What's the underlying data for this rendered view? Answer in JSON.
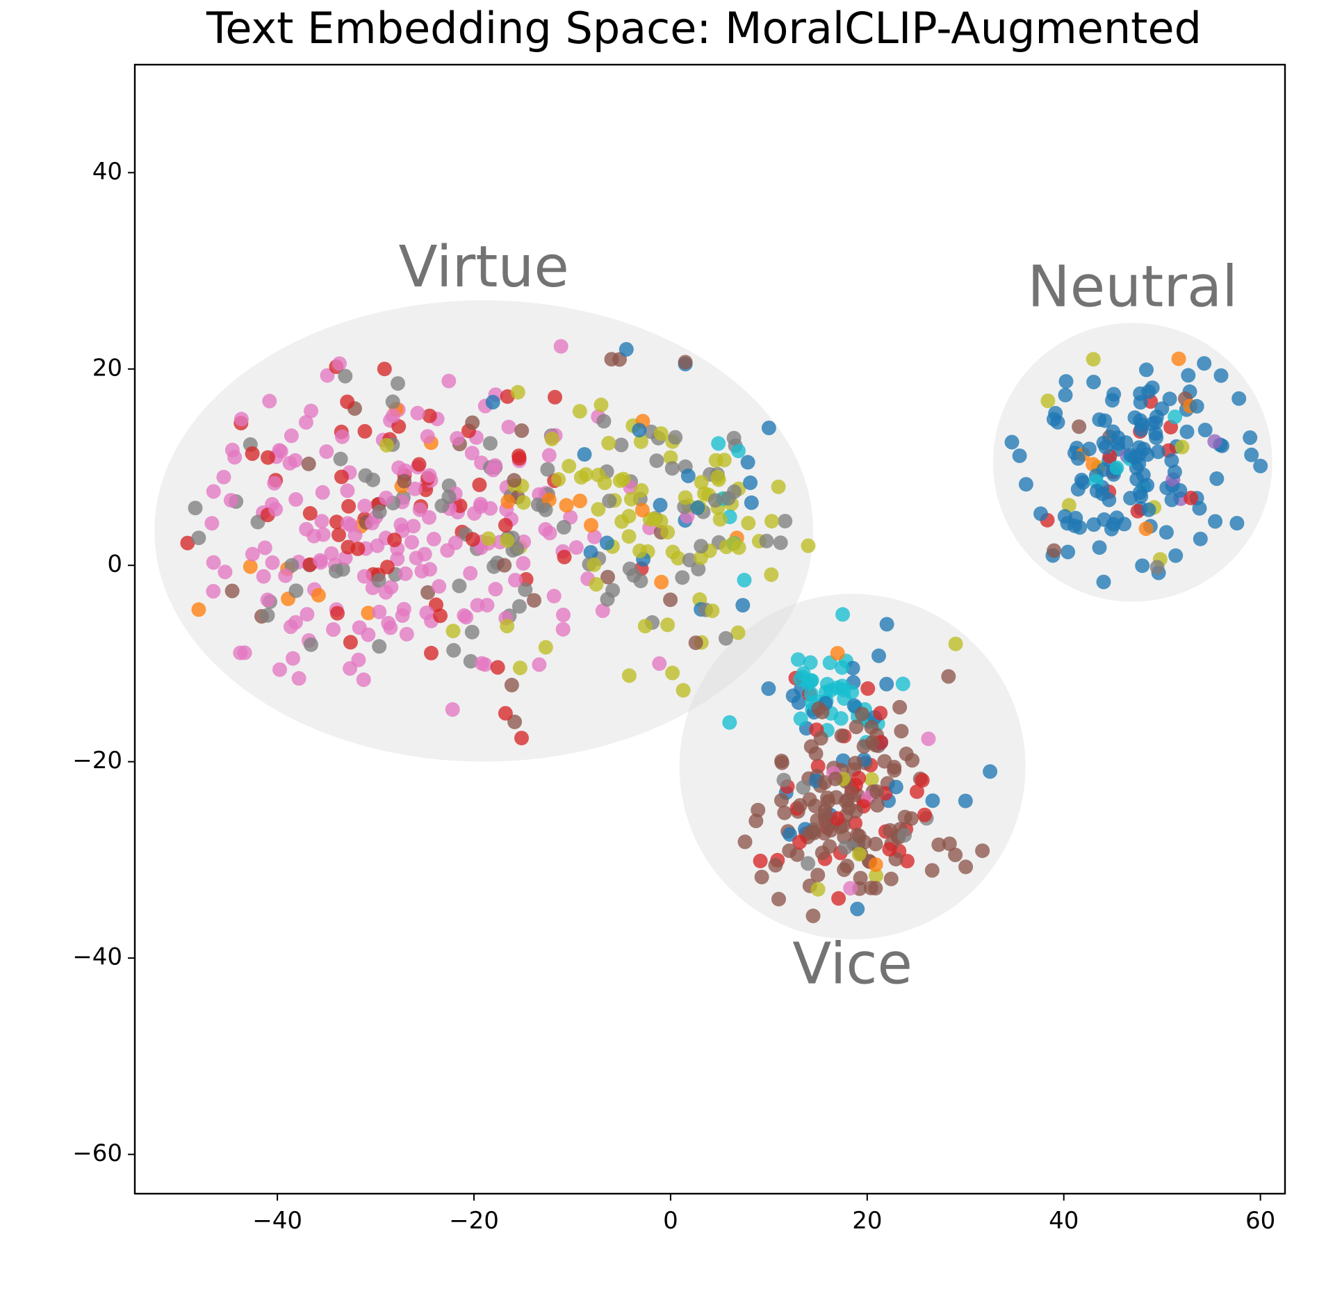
{
  "chart_data": {
    "type": "scatter",
    "title": "Text Embedding Space: MoralCLIP-Augmented",
    "xlabel": "",
    "ylabel": "",
    "xlim": [
      -54.5,
      62.5
    ],
    "ylim": [
      -64,
      51
    ],
    "x_ticks": [
      -40,
      -20,
      0,
      20,
      40,
      60
    ],
    "y_ticks": [
      -60,
      -40,
      -20,
      0,
      20,
      40
    ],
    "x_tick_labels": [
      "−40",
      "−20",
      "0",
      "20",
      "40",
      "60"
    ],
    "y_tick_labels": [
      "−60",
      "−40",
      "−20",
      "0",
      "20",
      "40"
    ],
    "grid": false,
    "legend": "none",
    "palette": [
      "#e377c2",
      "#d62728",
      "#8c564b",
      "#7f7f7f",
      "#bcbd22",
      "#1f77b4",
      "#17becf",
      "#ff7f0e",
      "#9467bd"
    ],
    "clusters": [
      {
        "label": "Virtue",
        "center": [
          -19,
          3.5
        ],
        "radius": [
          33.5,
          23.5
        ],
        "label_pos": [
          -19,
          30
        ]
      },
      {
        "label": "Neutral",
        "center": [
          47,
          10.5
        ],
        "radius": [
          14.2,
          14.2
        ],
        "label_pos": [
          47,
          28
        ]
      },
      {
        "label": "Vice",
        "center": [
          18.5,
          -20.5
        ],
        "radius": [
          17.6,
          17.6
        ],
        "label_pos": [
          18.5,
          -41
        ]
      }
    ],
    "point_groups": [
      {
        "cluster": "Virtue",
        "center": [
          -33,
          3
        ],
        "spread": [
          9,
          8
        ],
        "count": 200,
        "mix": {
          "#e377c2": 0.62,
          "#d62728": 0.18,
          "#7f7f7f": 0.13,
          "#8c564b": 0.04,
          "#ff7f0e": 0.03
        }
      },
      {
        "cluster": "Virtue",
        "center": [
          -18,
          2
        ],
        "spread": [
          7,
          9
        ],
        "count": 110,
        "mix": {
          "#e377c2": 0.5,
          "#d62728": 0.15,
          "#7f7f7f": 0.25,
          "#8c564b": 0.05,
          "#bcbd22": 0.05
        }
      },
      {
        "cluster": "Virtue",
        "center": [
          -4,
          5
        ],
        "spread": [
          7,
          8
        ],
        "count": 110,
        "mix": {
          "#bcbd22": 0.4,
          "#7f7f7f": 0.28,
          "#e377c2": 0.1,
          "#8c564b": 0.1,
          "#ff7f0e": 0.07,
          "#1f77b4": 0.05
        }
      },
      {
        "cluster": "Virtue",
        "center": [
          5,
          7
        ],
        "spread": [
          4,
          5
        ],
        "count": 50,
        "mix": {
          "#bcbd22": 0.6,
          "#7f7f7f": 0.2,
          "#17becf": 0.1,
          "#1f77b4": 0.1
        }
      },
      {
        "cluster": "Neutral",
        "center": [
          47,
          11
        ],
        "spread": [
          5.2,
          5.2
        ],
        "count": 150,
        "mix": {
          "#1f77b4": 0.78,
          "#d62728": 0.06,
          "#8c564b": 0.05,
          "#bcbd22": 0.04,
          "#17becf": 0.03,
          "#9467bd": 0.02,
          "#ff7f0e": 0.02
        }
      },
      {
        "cluster": "Vice",
        "center": [
          17,
          -13.5
        ],
        "spread": [
          3.2,
          2.5
        ],
        "count": 55,
        "mix": {
          "#17becf": 0.7,
          "#1f77b4": 0.2,
          "#d62728": 0.1
        }
      },
      {
        "cluster": "Vice",
        "center": [
          19,
          -25
        ],
        "spread": [
          4.5,
          5
        ],
        "count": 170,
        "mix": {
          "#8c564b": 0.6,
          "#d62728": 0.15,
          "#1f77b4": 0.1,
          "#7f7f7f": 0.08,
          "#e377c2": 0.03,
          "#bcbd22": 0.02,
          "#ff7f0e": 0.02
        }
      }
    ],
    "outliers": [
      {
        "x": -4.5,
        "y": 22,
        "color": "#1f77b4"
      },
      {
        "x": 1.5,
        "y": 20.5,
        "color": "#1f77b4"
      },
      {
        "x": 1.5,
        "y": 20.7,
        "color": "#8c564b"
      },
      {
        "x": -6,
        "y": 21,
        "color": "#8c564b"
      },
      {
        "x": 14,
        "y": 2,
        "color": "#bcbd22"
      },
      {
        "x": 10,
        "y": 14,
        "color": "#1f77b4"
      },
      {
        "x": 32.5,
        "y": -21,
        "color": "#1f77b4"
      },
      {
        "x": 30,
        "y": -24,
        "color": "#1f77b4"
      },
      {
        "x": 29,
        "y": -8,
        "color": "#bcbd22"
      },
      {
        "x": 11,
        "y": -34,
        "color": "#8c564b"
      },
      {
        "x": 15,
        "y": -33,
        "color": "#bcbd22"
      },
      {
        "x": 19,
        "y": -35,
        "color": "#1f77b4"
      },
      {
        "x": 22,
        "y": -6,
        "color": "#1f77b4"
      },
      {
        "x": 17.5,
        "y": -5,
        "color": "#17becf"
      },
      {
        "x": 6,
        "y": -16,
        "color": "#17becf"
      },
      {
        "x": 7.5,
        "y": -1.5,
        "color": "#17becf"
      },
      {
        "x": 43,
        "y": 21,
        "color": "#bcbd22"
      },
      {
        "x": 49.5,
        "y": -0.2,
        "color": "#7f7f7f"
      },
      {
        "x": 39,
        "y": 1.5,
        "color": "#8c564b"
      },
      {
        "x": -48,
        "y": 2.8,
        "color": "#7f7f7f"
      },
      {
        "x": -48,
        "y": -4.5,
        "color": "#ff7f0e"
      }
    ]
  }
}
